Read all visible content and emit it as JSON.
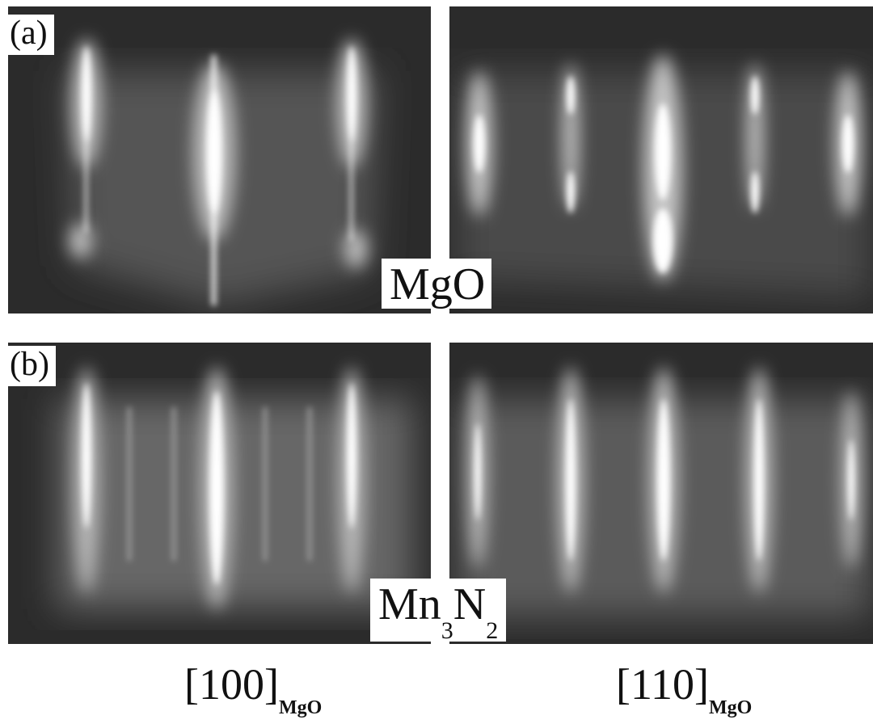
{
  "panels": {
    "a": {
      "label": "(a)",
      "material": "MgO"
    },
    "b": {
      "label": "(b)",
      "material_main": "Mn",
      "material_sub1": "3",
      "material_mid": "N",
      "material_sub2": "2"
    }
  },
  "directions": {
    "left": {
      "main": "[100]",
      "sub": "MgO"
    },
    "right": {
      "main": "[110]",
      "sub": "MgO"
    }
  },
  "colors": {
    "background": "#2b2b2b",
    "streak": "#ffffff",
    "label_bg": "#ffffff"
  }
}
